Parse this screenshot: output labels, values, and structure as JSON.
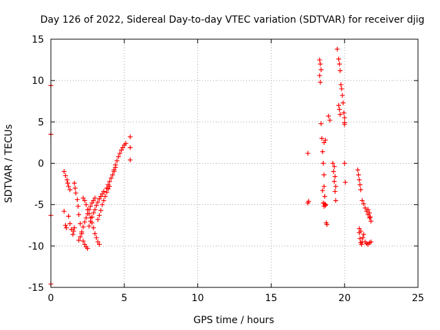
{
  "chart_data": {
    "type": "scatter",
    "title": "Day 126 of 2022, Sidereal Day-to-day VTEC variation (SDTVAR) for receiver djig",
    "xlabel": "GPS time / hours",
    "ylabel": "SDTVAR / TECUs",
    "xlim": [
      0,
      25
    ],
    "ylim": [
      -15,
      15
    ],
    "xticks": [
      "0",
      "5",
      "10",
      "15",
      "20",
      "25"
    ],
    "yticks": [
      "-15",
      "-10",
      "-5",
      "0",
      "5",
      "10",
      "15"
    ],
    "grid": true,
    "marker": "+",
    "color": "#ff0000",
    "series": [
      {
        "name": "SDTVAR",
        "x": [
          0.0,
          0.0,
          0.0,
          0.0,
          0.9,
          1.0,
          1.1,
          1.15,
          1.2,
          1.3,
          0.9,
          1.0,
          1.05,
          1.2,
          1.3,
          1.4,
          1.5,
          1.55,
          1.6,
          1.6,
          1.65,
          1.7,
          1.8,
          1.85,
          1.9,
          2.0,
          2.1,
          2.2,
          2.3,
          2.4,
          2.5,
          1.9,
          2.0,
          2.1,
          2.2,
          2.3,
          2.4,
          2.5,
          2.6,
          2.7,
          2.8,
          2.9,
          3.0,
          2.2,
          2.3,
          2.4,
          2.5,
          2.6,
          2.7,
          2.8,
          2.9,
          3.0,
          3.1,
          3.2,
          3.3,
          2.6,
          2.7,
          2.8,
          2.9,
          3.0,
          3.1,
          3.2,
          3.3,
          3.4,
          3.5,
          3.6,
          3.2,
          3.3,
          3.4,
          3.5,
          3.6,
          3.7,
          3.8,
          3.9,
          4.0,
          3.8,
          3.9,
          4.0,
          4.1,
          4.2,
          4.3,
          4.4,
          4.3,
          4.4,
          4.5,
          4.6,
          4.7,
          4.8,
          4.9,
          5.0,
          5.1,
          5.4,
          5.4,
          5.4,
          17.5,
          17.55,
          17.5,
          18.3,
          18.35,
          18.4,
          18.3,
          18.35,
          18.4,
          18.45,
          18.5,
          18.55,
          18.6,
          18.6,
          18.65,
          18.7,
          18.5,
          18.55,
          18.6,
          18.65,
          18.7,
          18.75,
          18.8,
          18.6,
          18.7,
          18.9,
          19.0,
          19.2,
          19.25,
          19.3,
          19.35,
          19.4,
          19.3,
          19.35,
          19.4,
          19.5,
          19.6,
          19.65,
          19.7,
          19.75,
          19.8,
          19.85,
          19.9,
          19.95,
          20.0,
          20.0,
          20.0,
          19.6,
          19.65,
          19.7,
          20.0,
          20.05,
          20.9,
          20.95,
          21.0,
          21.05,
          21.1,
          21.0,
          21.1,
          21.0,
          21.05,
          21.1,
          21.15,
          21.2,
          21.25,
          21.3,
          21.2,
          21.3,
          21.4,
          21.5,
          21.6,
          21.7,
          21.8,
          21.4,
          21.5,
          21.6,
          21.7,
          21.8,
          21.75,
          21.7,
          21.6
        ],
        "y": [
          9.4,
          3.5,
          -6.3,
          -14.6,
          -1.0,
          -1.5,
          -2.0,
          -2.4,
          -2.8,
          -3.2,
          -5.8,
          -7.5,
          -7.8,
          -6.4,
          -7.3,
          -8.0,
          -8.6,
          -8.2,
          -7.8,
          -2.4,
          -3.0,
          -3.6,
          -4.4,
          -5.2,
          -6.2,
          -7.3,
          -8.5,
          -9.4,
          -9.8,
          -10.1,
          -10.3,
          -9.3,
          -8.9,
          -8.3,
          -7.7,
          -7.1,
          -6.6,
          -6.1,
          -5.6,
          -5.2,
          -4.8,
          -4.5,
          -4.2,
          -4.2,
          -4.5,
          -5.0,
          -5.6,
          -6.1,
          -6.6,
          -7.2,
          -7.8,
          -8.5,
          -9.0,
          -9.5,
          -9.8,
          -7.6,
          -7.0,
          -6.5,
          -6.0,
          -5.6,
          -5.1,
          -4.7,
          -4.3,
          -4.0,
          -3.7,
          -3.4,
          -6.8,
          -6.3,
          -5.7,
          -5.0,
          -4.5,
          -4.0,
          -3.5,
          -3.1,
          -2.8,
          -3.0,
          -2.6,
          -2.2,
          -1.8,
          -1.4,
          -1.0,
          -0.5,
          -0.8,
          -0.2,
          0.3,
          0.8,
          1.2,
          1.6,
          1.9,
          2.2,
          2.4,
          3.2,
          1.9,
          0.4,
          1.2,
          -4.6,
          -4.8,
          12.5,
          12.0,
          11.3,
          10.6,
          9.8,
          4.8,
          3.0,
          1.4,
          0.0,
          -1.4,
          -2.8,
          -4.0,
          -5.0,
          -3.3,
          -4.8,
          -5.2,
          -4.9,
          -5.1,
          -7.2,
          -7.4,
          2.5,
          2.8,
          5.7,
          5.2,
          0.0,
          -1.0,
          -2.2,
          -3.4,
          -4.5,
          -0.4,
          -1.6,
          -2.8,
          13.8,
          12.6,
          12.0,
          11.2,
          9.5,
          9.0,
          8.2,
          7.3,
          6.1,
          5.5,
          4.9,
          4.7,
          7.0,
          6.5,
          5.9,
          0.0,
          -2.3,
          -0.8,
          -1.4,
          -2.0,
          -2.6,
          -3.2,
          -7.9,
          -8.2,
          -8.4,
          -9.1,
          -9.6,
          -9.8,
          -9.5,
          -9.0,
          -8.6,
          -4.5,
          -4.9,
          -5.4,
          -5.8,
          -6.2,
          -6.6,
          -7.0,
          -9.5,
          -9.7,
          -9.8,
          -9.6,
          -9.5,
          -6.5,
          -6.0,
          -5.6
        ]
      }
    ]
  }
}
